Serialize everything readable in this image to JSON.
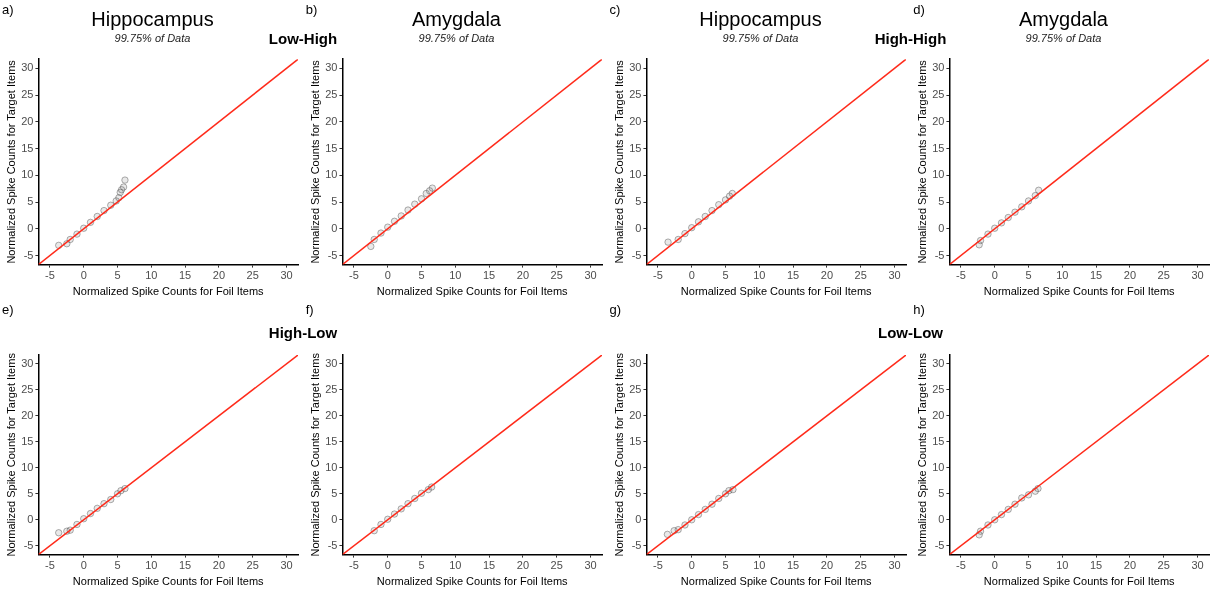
{
  "chart_data": [
    {
      "type": "scatter",
      "title": "Hippocampus",
      "subtitle": "99.75% of Data",
      "xlabel": "Normalized Spike Counts for Foil Items",
      "ylabel": "Normalized Spike Counts for Target Items",
      "xlim": [
        -6.7,
        31.7
      ],
      "ylim": [
        -6.7,
        31.7
      ],
      "xticks": [
        -5,
        0,
        5,
        10,
        15,
        20,
        25,
        30
      ],
      "yticks": [
        -5,
        0,
        5,
        10,
        15,
        20,
        25,
        30
      ],
      "grid": false,
      "legend": false,
      "marker": "circle",
      "annotations": [
        "a)",
        "Low-High"
      ],
      "series": [
        {
          "type": "scatter",
          "color": "#4d4d4d",
          "x": [
            -3.7,
            -2.5,
            -2,
            -1,
            0,
            1,
            2,
            3,
            4,
            4.8,
            5.2,
            5.4,
            5.6,
            5.9,
            6.1
          ],
          "values": [
            -3.1,
            -2.8,
            -2,
            -1,
            0.1,
            1.2,
            2.3,
            3.4,
            4.4,
            5.2,
            5.8,
            6.8,
            7.3,
            7.8,
            9.1
          ]
        },
        {
          "type": "line",
          "color": "#ff2a1a",
          "marker": "none",
          "x": [
            -6.7,
            31.7
          ],
          "values": [
            -6.7,
            31.7
          ]
        }
      ]
    },
    {
      "type": "scatter",
      "title": "Amygdala",
      "subtitle": "99.75% of Data",
      "xlabel": "Normalized Spike Counts for Foil Items",
      "ylabel": "Normalized Spike Counts for Target Items",
      "xlim": [
        -6.7,
        31.7
      ],
      "ylim": [
        -6.7,
        31.7
      ],
      "xticks": [
        -5,
        0,
        5,
        10,
        15,
        20,
        25,
        30
      ],
      "yticks": [
        -5,
        0,
        5,
        10,
        15,
        20,
        25,
        30
      ],
      "grid": false,
      "legend": false,
      "marker": "circle",
      "annotations": [
        "b)"
      ],
      "series": [
        {
          "type": "scatter",
          "color": "#4d4d4d",
          "x": [
            -2.5,
            -2,
            -1,
            0,
            1,
            2,
            3,
            4,
            5,
            5.7,
            6.2,
            6.6
          ],
          "values": [
            -3.3,
            -2,
            -0.8,
            0.3,
            1.4,
            2.4,
            3.5,
            4.6,
            5.6,
            6.6,
            7.1,
            7.6
          ]
        },
        {
          "type": "line",
          "color": "#ff2a1a",
          "marker": "none",
          "x": [
            -6.7,
            31.7
          ],
          "values": [
            -6.7,
            31.7
          ]
        }
      ]
    },
    {
      "type": "scatter",
      "title": "Hippocampus",
      "subtitle": "99.75% of Data",
      "xlabel": "Normalized Spike Counts for Foil Items",
      "ylabel": "Normalized Spike Counts for Target Items",
      "xlim": [
        -6.7,
        31.7
      ],
      "ylim": [
        -6.7,
        31.7
      ],
      "xticks": [
        -5,
        0,
        5,
        10,
        15,
        20,
        25,
        30
      ],
      "yticks": [
        -5,
        0,
        5,
        10,
        15,
        20,
        25,
        30
      ],
      "grid": false,
      "legend": false,
      "marker": "circle",
      "annotations": [
        "c)",
        "High-High"
      ],
      "series": [
        {
          "type": "scatter",
          "color": "#4d4d4d",
          "x": [
            -3.5,
            -2,
            -1,
            0,
            1,
            2,
            3,
            4,
            5,
            5.6,
            6
          ],
          "values": [
            -2.5,
            -2,
            -0.9,
            0.2,
            1.3,
            2.3,
            3.4,
            4.5,
            5.4,
            6.1,
            6.6
          ]
        },
        {
          "type": "line",
          "color": "#ff2a1a",
          "marker": "none",
          "x": [
            -6.7,
            31.7
          ],
          "values": [
            -6.7,
            31.7
          ]
        }
      ]
    },
    {
      "type": "scatter",
      "title": "Amygdala",
      "subtitle": "99.75% of Data",
      "xlabel": "Normalized Spike Counts for Foil Items",
      "ylabel": "Normalized Spike Counts for Target Items",
      "xlim": [
        -6.7,
        31.7
      ],
      "ylim": [
        -6.7,
        31.7
      ],
      "xticks": [
        -5,
        0,
        5,
        10,
        15,
        20,
        25,
        30
      ],
      "yticks": [
        -5,
        0,
        5,
        10,
        15,
        20,
        25,
        30
      ],
      "grid": false,
      "legend": false,
      "marker": "circle",
      "annotations": [
        "d)"
      ],
      "series": [
        {
          "type": "scatter",
          "color": "#4d4d4d",
          "x": [
            -2.3,
            -2.1,
            -1,
            0,
            1,
            2,
            3,
            4,
            5,
            6,
            6.5
          ],
          "values": [
            -3,
            -2.2,
            -1,
            0.1,
            1.1,
            2.1,
            3.1,
            4.1,
            5.2,
            6.2,
            7.2
          ]
        },
        {
          "type": "line",
          "color": "#ff2a1a",
          "marker": "none",
          "x": [
            -6.7,
            31.7
          ],
          "values": [
            -6.7,
            31.7
          ]
        }
      ]
    },
    {
      "type": "scatter",
      "xlabel": "Normalized Spike Counts for Foil Items",
      "ylabel": "Normalized Spike Counts for Target Items",
      "xlim": [
        -6.7,
        31.7
      ],
      "ylim": [
        -6.7,
        31.7
      ],
      "xticks": [
        -5,
        0,
        5,
        10,
        15,
        20,
        25,
        30
      ],
      "yticks": [
        -5,
        0,
        5,
        10,
        15,
        20,
        25,
        30
      ],
      "grid": false,
      "legend": false,
      "marker": "circle",
      "annotations": [
        "e)",
        "High-Low"
      ],
      "series": [
        {
          "type": "scatter",
          "color": "#4d4d4d",
          "x": [
            -3.7,
            -2.5,
            -2,
            -1,
            0,
            1,
            2,
            3,
            4,
            5,
            5.5,
            6.1
          ],
          "values": [
            -2.5,
            -2.2,
            -2,
            -0.9,
            0.2,
            1.2,
            2.2,
            3.1,
            3.9,
            5,
            5.6,
            6
          ]
        },
        {
          "type": "line",
          "color": "#ff2a1a",
          "marker": "none",
          "x": [
            -6.7,
            31.7
          ],
          "values": [
            -6.7,
            31.7
          ]
        }
      ]
    },
    {
      "type": "scatter",
      "xlabel": "Normalized Spike Counts for Foil Items",
      "ylabel": "Normalized Spike Counts for Target Items",
      "xlim": [
        -6.7,
        31.7
      ],
      "ylim": [
        -6.7,
        31.7
      ],
      "xticks": [
        -5,
        0,
        5,
        10,
        15,
        20,
        25,
        30
      ],
      "yticks": [
        -5,
        0,
        5,
        10,
        15,
        20,
        25,
        30
      ],
      "grid": false,
      "legend": false,
      "marker": "circle",
      "annotations": [
        "f)"
      ],
      "series": [
        {
          "type": "scatter",
          "color": "#4d4d4d",
          "x": [
            -2,
            -1,
            0,
            1,
            2,
            3,
            4,
            5,
            6,
            6.5
          ],
          "values": [
            -2.1,
            -0.9,
            0.1,
            1.1,
            2.1,
            3.1,
            4.1,
            5.1,
            5.8,
            6.3
          ]
        },
        {
          "type": "line",
          "color": "#ff2a1a",
          "marker": "none",
          "x": [
            -6.7,
            31.7
          ],
          "values": [
            -6.7,
            31.7
          ]
        }
      ]
    },
    {
      "type": "scatter",
      "xlabel": "Normalized Spike Counts for Foil Items",
      "ylabel": "Normalized Spike Counts for Target Items",
      "xlim": [
        -6.7,
        31.7
      ],
      "ylim": [
        -6.7,
        31.7
      ],
      "xticks": [
        -5,
        0,
        5,
        10,
        15,
        20,
        25,
        30
      ],
      "yticks": [
        -5,
        0,
        5,
        10,
        15,
        20,
        25,
        30
      ],
      "grid": false,
      "legend": false,
      "marker": "circle",
      "annotations": [
        "g)",
        "Low-Low"
      ],
      "series": [
        {
          "type": "scatter",
          "color": "#4d4d4d",
          "x": [
            -3.6,
            -2.6,
            -2,
            -1,
            0,
            1,
            2,
            3,
            4,
            5,
            5.5,
            6.1
          ],
          "values": [
            -2.8,
            -2.1,
            -1.9,
            -1,
            0,
            1,
            2,
            3,
            4.1,
            5,
            5.6,
            5.8
          ]
        },
        {
          "type": "line",
          "color": "#ff2a1a",
          "marker": "none",
          "x": [
            -6.7,
            31.7
          ],
          "values": [
            -6.7,
            31.7
          ]
        }
      ]
    },
    {
      "type": "scatter",
      "xlabel": "Normalized Spike Counts for Foil Items",
      "ylabel": "Normalized Spike Counts for Target Items",
      "xlim": [
        -6.7,
        31.7
      ],
      "ylim": [
        -6.7,
        31.7
      ],
      "xticks": [
        -5,
        0,
        5,
        10,
        15,
        20,
        25,
        30
      ],
      "yticks": [
        -5,
        0,
        5,
        10,
        15,
        20,
        25,
        30
      ],
      "grid": false,
      "legend": false,
      "marker": "circle",
      "annotations": [
        "h)"
      ],
      "series": [
        {
          "type": "scatter",
          "color": "#4d4d4d",
          "x": [
            -2.3,
            -2.1,
            -1,
            0,
            1,
            2,
            3,
            4,
            5,
            6,
            6.4
          ],
          "values": [
            -2.9,
            -2.2,
            -1,
            0,
            1,
            2,
            3,
            4.2,
            4.8,
            5.5,
            6
          ]
        },
        {
          "type": "line",
          "color": "#ff2a1a",
          "marker": "none",
          "x": [
            -6.7,
            31.7
          ],
          "values": [
            -6.7,
            31.7
          ]
        }
      ]
    }
  ]
}
